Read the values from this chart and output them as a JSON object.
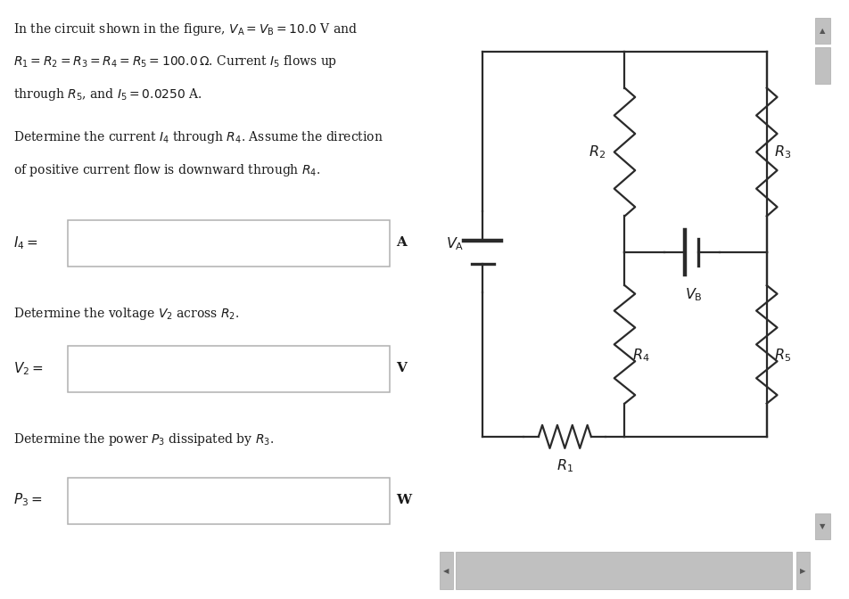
{
  "bg_color": "#ffffff",
  "box_edge_color": "#b0b0b0",
  "circuit_line_color": "#2a2a2a",
  "label_color": "#1a1a1a",
  "fs_body": 10.0,
  "fs_label": 11.0,
  "fs_circuit_label": 11.5,
  "scrollbar_bg": "#e8e8e8",
  "scrollbar_thumb": "#c0c0c0",
  "lines": [
    "In the circuit shown in the figure, $V_\\mathrm{A} = V_\\mathrm{B} = 10.0$ V and",
    "$R_1 = R_2 = R_3 = R_4 = R_5 = 100.0\\,\\Omega$. Current $I_5$ flows up",
    "through $R_5$, and $I_5 = 0.0250$ A."
  ],
  "q1_line1": "Determine the current $I_4$ through $R_4$. Assume the direction",
  "q1_line2": "of positive current flow is downward through $R_4$.",
  "q1_label": "$I_4 =$",
  "q1_unit": "A",
  "q2_text": "Determine the voltage $V_2$ across $R_2$.",
  "q2_label": "$V_2 =$",
  "q2_unit": "V",
  "q3_text": "Determine the power $P_3$ dissipated by $R_3$.",
  "q3_label": "$P_3 =$",
  "q3_unit": "W"
}
